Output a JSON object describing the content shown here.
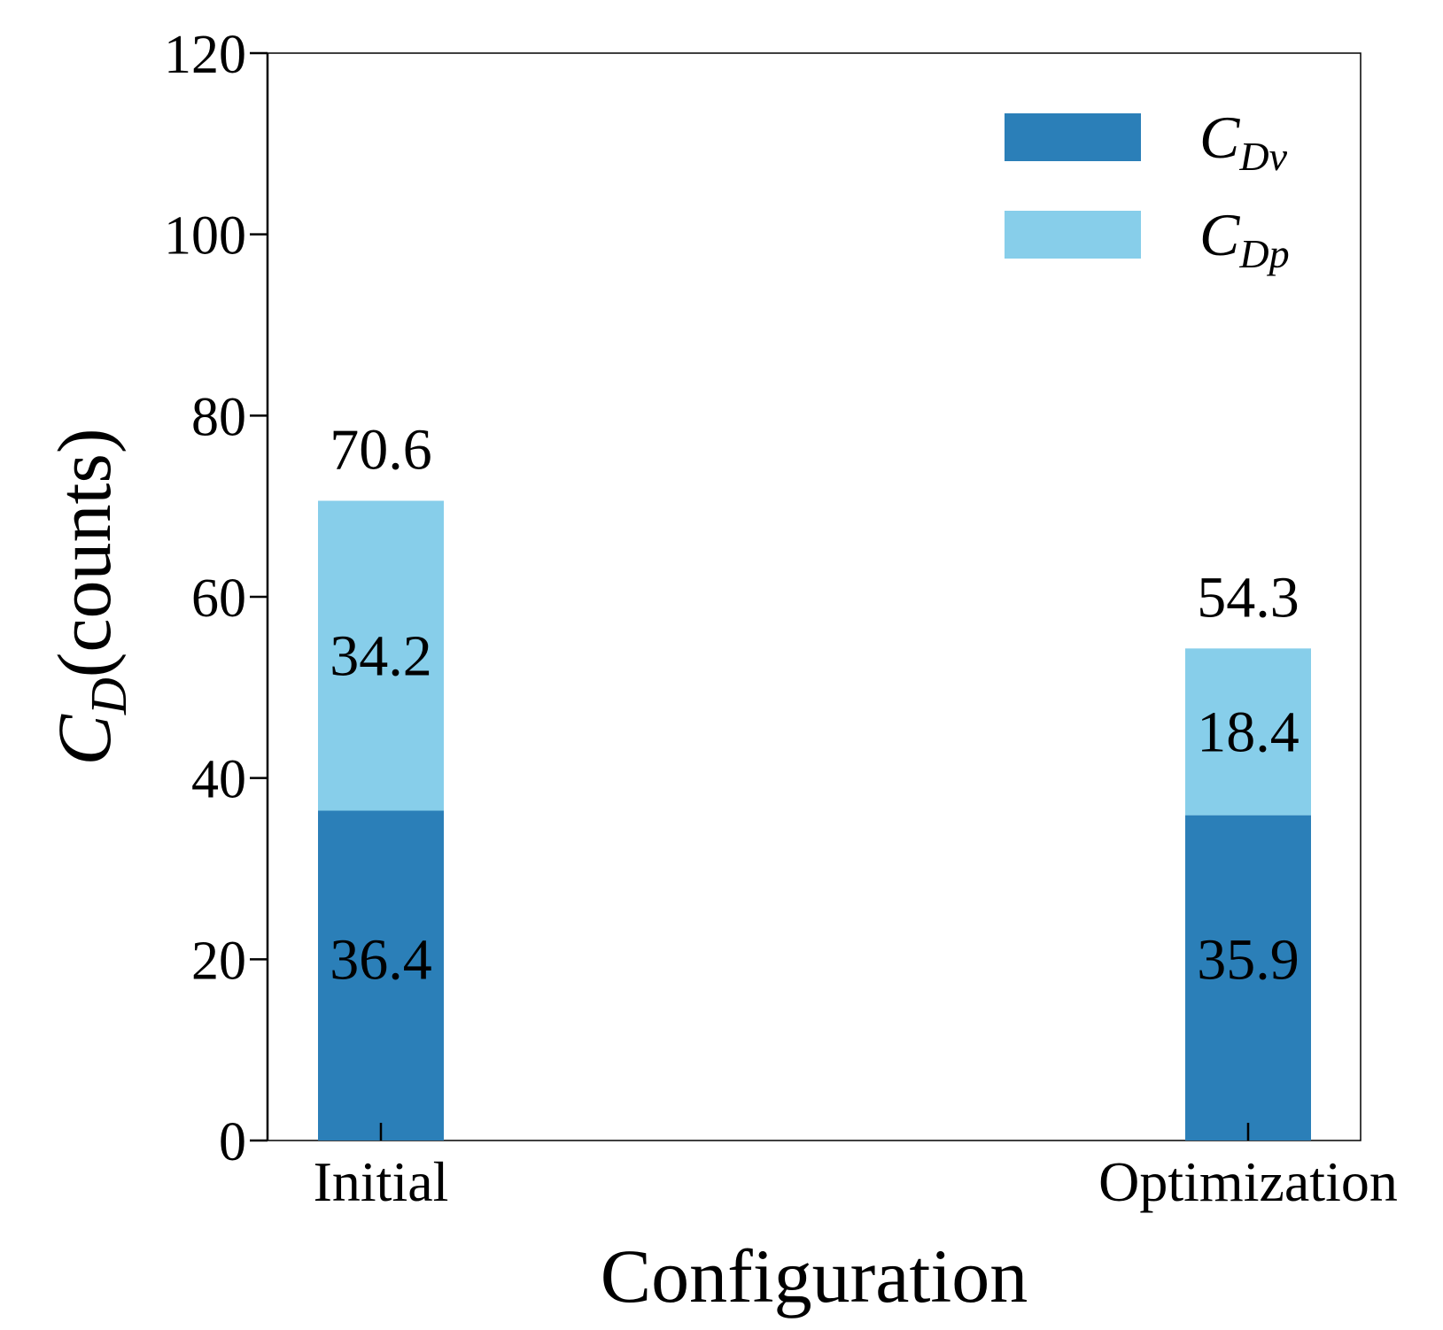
{
  "chart_data": {
    "type": "bar",
    "stacked": true,
    "categories": [
      "Initial",
      "Optimization"
    ],
    "series": [
      {
        "name": "C_Dv",
        "legend_main": "C",
        "legend_sub": "Dv",
        "color": "#2b7fb8",
        "values": [
          36.4,
          35.9
        ],
        "labels": [
          "36.4",
          "35.9"
        ]
      },
      {
        "name": "C_Dp",
        "legend_main": "C",
        "legend_sub": "Dp",
        "color": "#87ceea",
        "values": [
          34.2,
          18.4
        ],
        "labels": [
          "34.2",
          "18.4"
        ]
      }
    ],
    "totals": [
      70.6,
      54.3
    ],
    "total_labels": [
      "70.6",
      "54.3"
    ],
    "xlabel": "Configuration",
    "ylabel_main": "C",
    "ylabel_sub": "D",
    "ylabel_rest": "(counts)",
    "ylim": [
      0,
      120
    ],
    "yticks": [
      0,
      20,
      40,
      60,
      80,
      100,
      120
    ],
    "ytick_labels": [
      "0",
      "20",
      "40",
      "60",
      "80",
      "100",
      "120"
    ],
    "grid": false,
    "legend_position": "top-right"
  }
}
